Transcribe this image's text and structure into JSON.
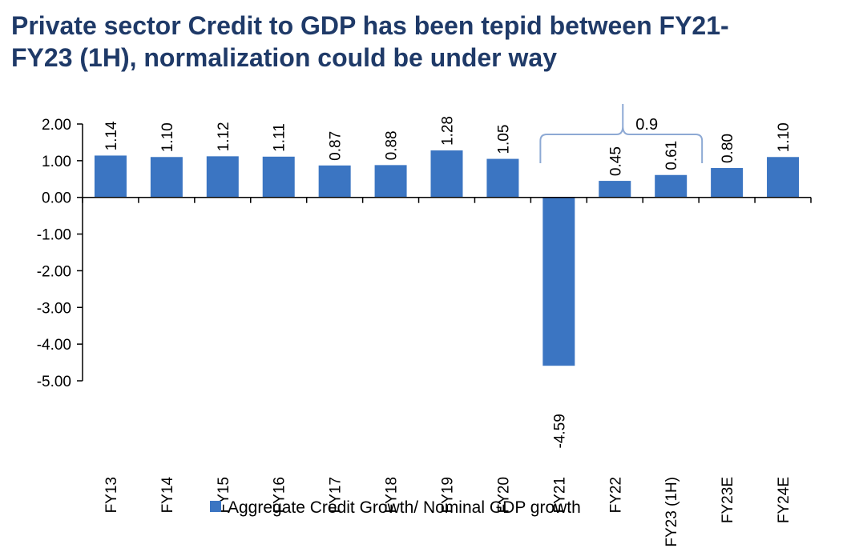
{
  "title_line1": "Private sector Credit to GDP has been tepid between FY21-",
  "title_line2": "FY23 (1H), normalization could be under way",
  "colors": {
    "bar": "#3b75c2",
    "title": "#1f3a68",
    "bracket": "#8da9d4"
  },
  "chart_data": {
    "type": "bar",
    "categories": [
      "FY13",
      "FY14",
      "FY15",
      "FY16",
      "FY17",
      "FY18",
      "FY19",
      "FY20",
      "FY21",
      "FY22",
      "FY23 (1H)",
      "FY23E",
      "FY24E"
    ],
    "series": [
      {
        "name": "Aggregate Credit Growth/ Nominal GDP growth",
        "values": [
          1.14,
          1.1,
          1.12,
          1.11,
          0.87,
          0.88,
          1.28,
          1.05,
          -4.59,
          0.45,
          0.61,
          0.8,
          1.1
        ],
        "labels": [
          "1.14",
          "1.10",
          "1.12",
          "1.11",
          "0.87",
          "0.88",
          "1.28",
          "1.05",
          "-4.59",
          "0.45",
          "0.61",
          "0.80",
          "1.10"
        ]
      }
    ],
    "ylim": [
      -5,
      2
    ],
    "yticks": [
      "2.00",
      "1.00",
      "0.00",
      "-1.00",
      "-2.00",
      "-3.00",
      "-4.00",
      "-5.00"
    ],
    "ytick_values": [
      2,
      1,
      0,
      -1,
      -2,
      -3,
      -4,
      -5
    ],
    "annotation": {
      "text": "0.9",
      "from_category": "FY21",
      "to_category": "FY23 (1H)"
    },
    "legend": "bottom"
  }
}
